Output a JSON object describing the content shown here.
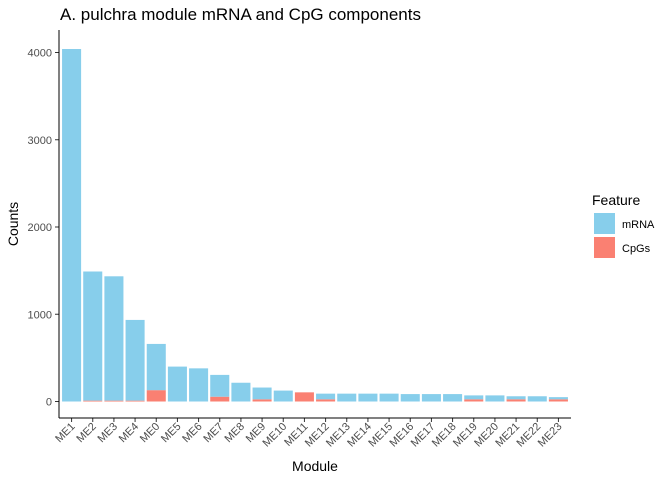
{
  "chart_data": {
    "type": "bar",
    "stacked": true,
    "title": "A. pulchra module mRNA and CpG components",
    "xlabel": "Module",
    "ylabel": "Counts",
    "ylim": [
      0,
      4150
    ],
    "yticks": [
      0,
      1000,
      2000,
      3000,
      4000
    ],
    "grid": false,
    "legend": {
      "title": "Feature",
      "placement": "right",
      "entries": [
        {
          "key": "mRNA",
          "label": "mRNA",
          "color": "#87CEEB"
        },
        {
          "key": "CpGs",
          "label": "CpGs",
          "color": "#FA8072"
        }
      ]
    },
    "categories": [
      "ME1",
      "ME2",
      "ME3",
      "ME4",
      "ME0",
      "ME5",
      "ME6",
      "ME7",
      "ME8",
      "ME9",
      "ME10",
      "ME11",
      "ME12",
      "ME13",
      "ME14",
      "ME15",
      "ME16",
      "ME17",
      "ME18",
      "ME19",
      "ME20",
      "ME21",
      "ME22",
      "ME23"
    ],
    "series": [
      {
        "name": "mRNA",
        "color": "#87CEEB",
        "values": [
          4040,
          1480,
          1425,
          925,
          530,
          400,
          380,
          250,
          215,
          135,
          125,
          0,
          65,
          90,
          90,
          90,
          85,
          85,
          85,
          45,
          70,
          35,
          60,
          25
        ]
      },
      {
        "name": "CpGs",
        "color": "#FA8072",
        "values": [
          0,
          10,
          10,
          10,
          130,
          0,
          0,
          55,
          0,
          25,
          0,
          105,
          25,
          0,
          0,
          0,
          0,
          0,
          0,
          25,
          0,
          25,
          0,
          25
        ]
      }
    ]
  }
}
